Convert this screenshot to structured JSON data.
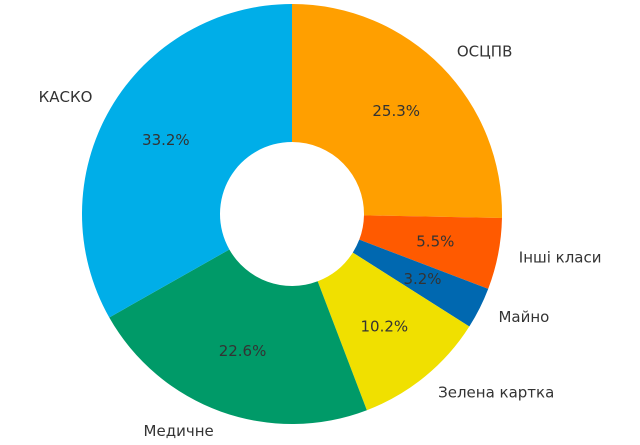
{
  "chart_data": {
    "type": "pie",
    "categories": [
      "ОСЦПВ",
      "Інші класи",
      "Майно",
      "Зелена картка",
      "Медичне",
      "КАСКО"
    ],
    "values": [
      25.3,
      5.5,
      3.2,
      10.2,
      22.6,
      33.2
    ],
    "value_labels": [
      "25.3%",
      "5.5%",
      "3.2%",
      "10.2%",
      "22.6%",
      "33.2%"
    ],
    "colors": [
      "#ff9f00",
      "#ff5a00",
      "#0068b0",
      "#f0e000",
      "#009a68",
      "#00aee8"
    ],
    "donut": true
  }
}
